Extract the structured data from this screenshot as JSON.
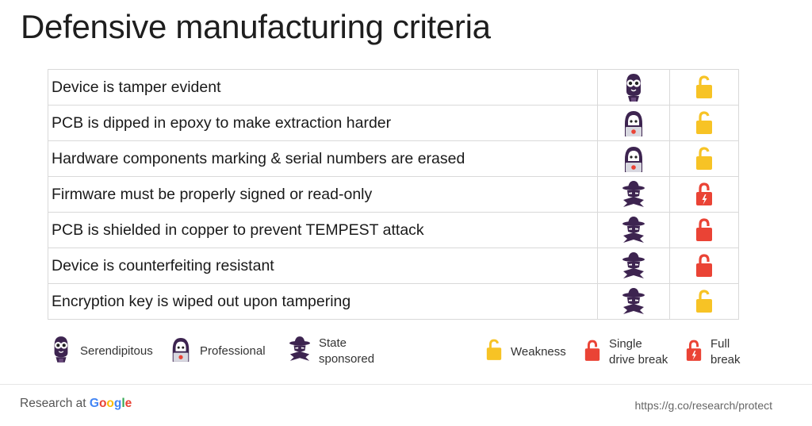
{
  "title": "Defensive manufacturing criteria",
  "colors": {
    "weakness": "#f7c325",
    "break": "#ea4335",
    "actor": "#3d2450"
  },
  "rows": [
    {
      "text": "Device is tamper evident",
      "actor_icon": "serendipitous-icon",
      "break_icon": "weakness-lock-icon"
    },
    {
      "text": "PCB is dipped in epoxy to make extraction harder",
      "actor_icon": "professional-icon",
      "break_icon": "weakness-lock-icon"
    },
    {
      "text": "Hardware components marking & serial numbers are erased",
      "actor_icon": "professional-icon",
      "break_icon": "weakness-lock-icon"
    },
    {
      "text": "Firmware must be properly signed or read-only",
      "actor_icon": "state-sponsored-icon",
      "break_icon": "full-break-lock-icon"
    },
    {
      "text": "PCB is shielded in copper to prevent TEMPEST attack",
      "actor_icon": "state-sponsored-icon",
      "break_icon": "single-drive-break-lock-icon"
    },
    {
      "text": "Device is counterfeiting resistant",
      "actor_icon": "state-sponsored-icon",
      "break_icon": "single-drive-break-lock-icon"
    },
    {
      "text": "Encryption key is wiped out upon tampering",
      "actor_icon": "state-sponsored-icon",
      "break_icon": "weakness-lock-icon"
    }
  ],
  "legend": {
    "serendipitous": "Serendipitous",
    "professional": "Professional",
    "state_line1": "State",
    "state_line2": "sponsored",
    "weakness": "Weakness",
    "single_line1": "Single",
    "single_line2": "drive break",
    "full_line1": "Full",
    "full_line2": "break"
  },
  "footer": {
    "brand_prefix": "Research at",
    "brand_name": "Google",
    "url": "https://g.co/research/protect"
  }
}
